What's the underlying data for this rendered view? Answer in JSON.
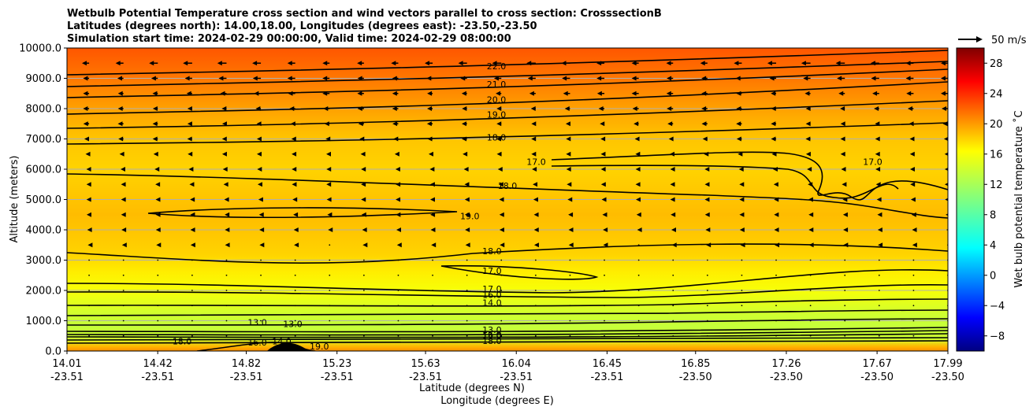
{
  "chart_data": {
    "type": "contour",
    "title": [
      "Wetbulb Potential Temperature cross section and wind vectors parallel to cross section: CrosssectionB",
      "Latitudes (degrees north): 14.00,18.00, Longitudes (degrees east): -23.50,-23.50",
      "Simulation start time: 2024-02-29 00:00:00, Valid time: 2024-02-29 08:00:00"
    ],
    "xlabel": "Latitude (degrees N)",
    "xlabel2": "Longitude (degrees E)",
    "ylabel": "Altitude (meters)",
    "ylim": [
      0,
      10000
    ],
    "xlim": [
      14.01,
      17.99
    ],
    "x_ticks": [
      {
        "lat": "14.01",
        "lon": "-23.51",
        "value": 14.01
      },
      {
        "lat": "14.42",
        "lon": "-23.51",
        "value": 14.42
      },
      {
        "lat": "14.82",
        "lon": "-23.51",
        "value": 14.82
      },
      {
        "lat": "15.23",
        "lon": "-23.51",
        "value": 15.23
      },
      {
        "lat": "15.63",
        "lon": "-23.51",
        "value": 15.63
      },
      {
        "lat": "16.04",
        "lon": "-23.51",
        "value": 16.04
      },
      {
        "lat": "16.45",
        "lon": "-23.51",
        "value": 16.45
      },
      {
        "lat": "16.85",
        "lon": "-23.50",
        "value": 16.85
      },
      {
        "lat": "17.26",
        "lon": "-23.50",
        "value": 17.26
      },
      {
        "lat": "17.67",
        "lon": "-23.50",
        "value": 17.67
      },
      {
        "lat": "17.99",
        "lon": "-23.50",
        "value": 17.99
      }
    ],
    "y_ticks": [
      "0.0",
      "1000.0",
      "2000.0",
      "3000.0",
      "4000.0",
      "5000.0",
      "6000.0",
      "7000.0",
      "8000.0",
      "9000.0",
      "10000.0"
    ],
    "y_tick_values": [
      0,
      1000,
      2000,
      3000,
      4000,
      5000,
      6000,
      7000,
      8000,
      9000,
      10000
    ],
    "colorbar": {
      "label": "Wet bulb potential temperature ˚C",
      "range": [
        -10,
        30
      ],
      "ticks": [
        "−8",
        "−4",
        "0",
        "4",
        "8",
        "12",
        "16",
        "20",
        "24",
        "28"
      ],
      "tick_values": [
        -8,
        -4,
        0,
        4,
        8,
        12,
        16,
        20,
        24,
        28
      ]
    },
    "field_profile": [
      {
        "z": 0,
        "t": 20.5
      },
      {
        "z": 150,
        "t": 19.0
      },
      {
        "z": 400,
        "t": 14.0
      },
      {
        "z": 800,
        "t": 13.5
      },
      {
        "z": 1200,
        "t": 14.0
      },
      {
        "z": 1600,
        "t": 15.0
      },
      {
        "z": 2000,
        "t": 16.0
      },
      {
        "z": 2600,
        "t": 17.0
      },
      {
        "z": 3200,
        "t": 18.0
      },
      {
        "z": 4500,
        "t": 18.8
      },
      {
        "z": 6000,
        "t": 18.0
      },
      {
        "z": 7000,
        "t": 18.5
      },
      {
        "z": 8000,
        "t": 19.8
      },
      {
        "z": 9000,
        "t": 21.3
      },
      {
        "z": 10000,
        "t": 22.5
      }
    ],
    "contour_labels": [
      {
        "text": "22.0",
        "lat": 15.95,
        "z": 9350
      },
      {
        "text": "21.0",
        "lat": 15.95,
        "z": 8750
      },
      {
        "text": "20.0",
        "lat": 15.95,
        "z": 8250
      },
      {
        "text": "19.0",
        "lat": 15.95,
        "z": 7750
      },
      {
        "text": "18.0",
        "lat": 15.95,
        "z": 7000
      },
      {
        "text": "17.0",
        "lat": 16.13,
        "z": 6200
      },
      {
        "text": "17.0",
        "lat": 17.65,
        "z": 6200
      },
      {
        "text": "18.0",
        "lat": 16.0,
        "z": 5400
      },
      {
        "text": "19.0",
        "lat": 15.83,
        "z": 4400
      },
      {
        "text": "18.0",
        "lat": 15.93,
        "z": 3250
      },
      {
        "text": "17.0",
        "lat": 15.93,
        "z": 2600
      },
      {
        "text": "17.0",
        "lat": 15.93,
        "z": 2000
      },
      {
        "text": "16.0",
        "lat": 15.93,
        "z": 1800
      },
      {
        "text": "14.0",
        "lat": 15.93,
        "z": 1550
      },
      {
        "text": "13.0",
        "lat": 15.93,
        "z": 650
      },
      {
        "text": "13.0",
        "lat": 15.03,
        "z": 850
      },
      {
        "text": "13.0",
        "lat": 14.87,
        "z": 900
      },
      {
        "text": "16.0",
        "lat": 14.87,
        "z": 230
      },
      {
        "text": "14.0",
        "lat": 14.98,
        "z": 270
      },
      {
        "text": "18.0",
        "lat": 14.53,
        "z": 270
      },
      {
        "text": "19.0",
        "lat": 15.15,
        "z": 100
      },
      {
        "text": "16.0",
        "lat": 15.93,
        "z": 500
      },
      {
        "text": "14.0",
        "lat": 15.93,
        "z": 440
      },
      {
        "text": "18.0",
        "lat": 15.93,
        "z": 280
      }
    ],
    "wind": {
      "reference_label": "50 m/s",
      "reference_speed": 50,
      "profile": [
        {
          "z": 500,
          "u": -0.5
        },
        {
          "z": 1000,
          "u": -1.0
        },
        {
          "z": 2000,
          "u": -1.5
        },
        {
          "z": 3000,
          "u": -2.0
        },
        {
          "z": 4000,
          "u": -3.5
        },
        {
          "z": 5000,
          "u": -5.0
        },
        {
          "z": 6000,
          "u": -6.5
        },
        {
          "z": 7000,
          "u": -9.0
        },
        {
          "z": 8000,
          "u": -11.0
        },
        {
          "z": 9000,
          "u": -14.0
        },
        {
          "z": 9500,
          "u": -16.0
        }
      ]
    }
  }
}
